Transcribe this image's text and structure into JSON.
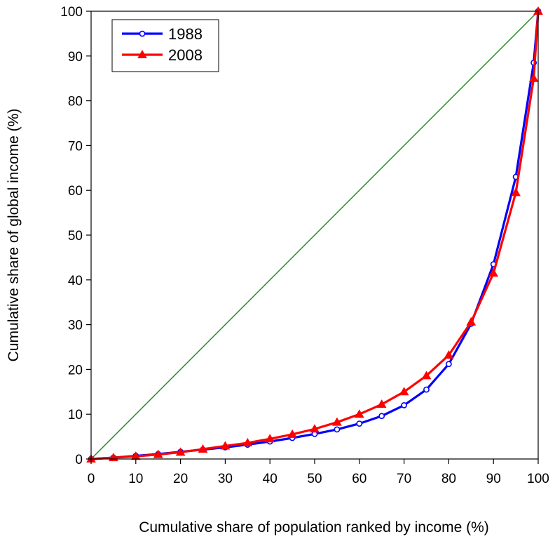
{
  "chart_data": {
    "type": "line",
    "title": "",
    "xlabel": "Cumulative share of population ranked by income (%)",
    "ylabel": "Cumulative share of global income (%)",
    "xlim": [
      0,
      100
    ],
    "ylim": [
      0,
      100
    ],
    "x_ticks": [
      0,
      10,
      20,
      30,
      40,
      50,
      60,
      70,
      80,
      90,
      100
    ],
    "y_ticks": [
      0,
      10,
      20,
      30,
      40,
      50,
      60,
      70,
      80,
      90,
      100
    ],
    "grid": false,
    "legend_position": "top-left",
    "reference_line": {
      "x": [
        0,
        100
      ],
      "y": [
        0,
        100
      ],
      "color": "#1a8a1a"
    },
    "series": [
      {
        "name": "1988",
        "color": "#0000ff",
        "marker": "open-circle",
        "x": [
          0,
          5,
          10,
          15,
          20,
          25,
          30,
          35,
          40,
          45,
          50,
          55,
          60,
          65,
          70,
          75,
          80,
          85,
          90,
          95,
          99,
          100
        ],
        "y": [
          0,
          0.3,
          0.7,
          1.1,
          1.6,
          2.1,
          2.6,
          3.2,
          3.9,
          4.7,
          5.6,
          6.6,
          7.9,
          9.6,
          12.0,
          15.5,
          21.2,
          30.2,
          43.5,
          63.0,
          88.5,
          100
        ]
      },
      {
        "name": "2008",
        "color": "#ff0000",
        "marker": "filled-triangle",
        "x": [
          0,
          5,
          10,
          15,
          20,
          25,
          30,
          35,
          40,
          45,
          50,
          55,
          60,
          65,
          70,
          75,
          80,
          85,
          90,
          95,
          99,
          100
        ],
        "y": [
          0,
          0.3,
          0.6,
          1.0,
          1.5,
          2.2,
          2.9,
          3.6,
          4.5,
          5.5,
          6.7,
          8.2,
          10.0,
          12.2,
          15.0,
          18.6,
          23.2,
          30.6,
          41.5,
          59.5,
          85.0,
          100
        ]
      }
    ]
  }
}
